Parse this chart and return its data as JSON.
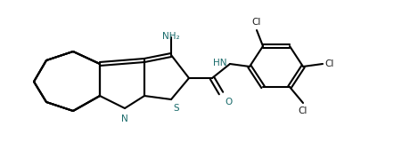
{
  "bg": "#ffffff",
  "lc": "#000000",
  "lw": 1.5,
  "atoms": {
    "N_label": "N",
    "S_label": "S",
    "NH2_label": "NH₂",
    "HN_label": "HN",
    "O_label": "O",
    "Cl1_label": "Cl",
    "Cl2_label": "Cl",
    "Cl3_label": "Cl"
  }
}
